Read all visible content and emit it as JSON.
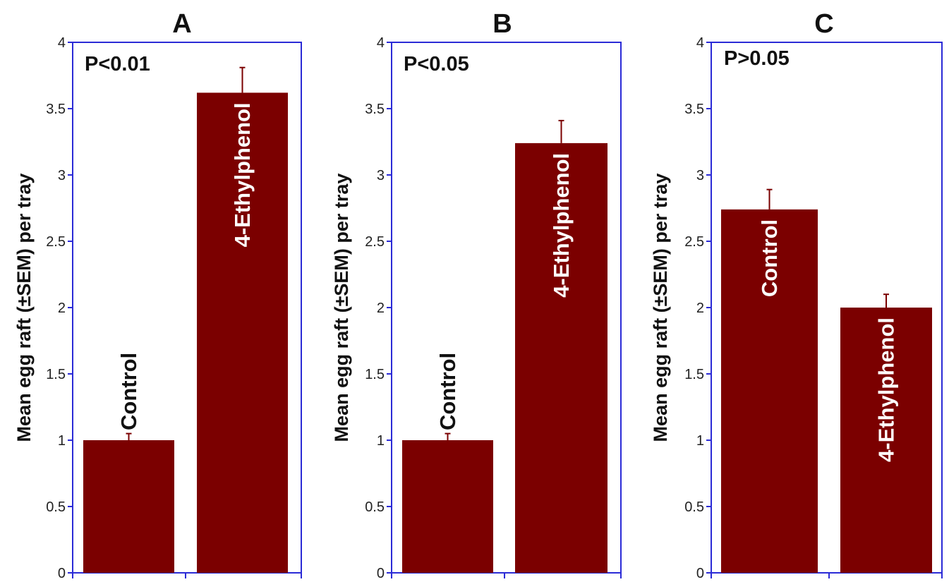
{
  "chart_data": [
    {
      "type": "bar",
      "title": "A",
      "ylabel": "Mean egg raft (±SEM) per tray",
      "annotation": "P<0.01",
      "categories": [
        "Control",
        "4-Ethylphenol"
      ],
      "values": [
        1.0,
        3.62
      ],
      "errors": [
        0.05,
        0.19
      ],
      "ylim": [
        0,
        4
      ],
      "yticks": [
        "0",
        "0.5",
        "1",
        "1.5",
        "2",
        "2.5",
        "3",
        "3.5",
        "4"
      ],
      "grid": false,
      "bar_color": "#7b0000",
      "axis_color": "#2b2bd6"
    },
    {
      "type": "bar",
      "title": "B",
      "ylabel": "Mean egg raft (±SEM) per tray",
      "annotation": "P<0.05",
      "categories": [
        "Control",
        "4-Ethylphenol"
      ],
      "values": [
        1.0,
        3.24
      ],
      "errors": [
        0.05,
        0.17
      ],
      "ylim": [
        0,
        4
      ],
      "yticks": [
        "0",
        "0.5",
        "1",
        "1.5",
        "2",
        "2.5",
        "3",
        "3.5",
        "4"
      ],
      "grid": false,
      "bar_color": "#7b0000",
      "axis_color": "#2b2bd6"
    },
    {
      "type": "bar",
      "title": "C",
      "ylabel": "Mean egg raft (±SEM) per tray",
      "annotation": "P>0.05",
      "categories": [
        "Control",
        "4-Ethylphenol"
      ],
      "values": [
        2.74,
        2.0
      ],
      "errors": [
        0.15,
        0.1
      ],
      "ylim": [
        0,
        4
      ],
      "yticks": [
        "0",
        "0.5",
        "1",
        "1.5",
        "2",
        "2.5",
        "3",
        "3.5",
        "4"
      ],
      "grid": false,
      "bar_color": "#7b0000",
      "axis_color": "#2b2bd6"
    }
  ]
}
